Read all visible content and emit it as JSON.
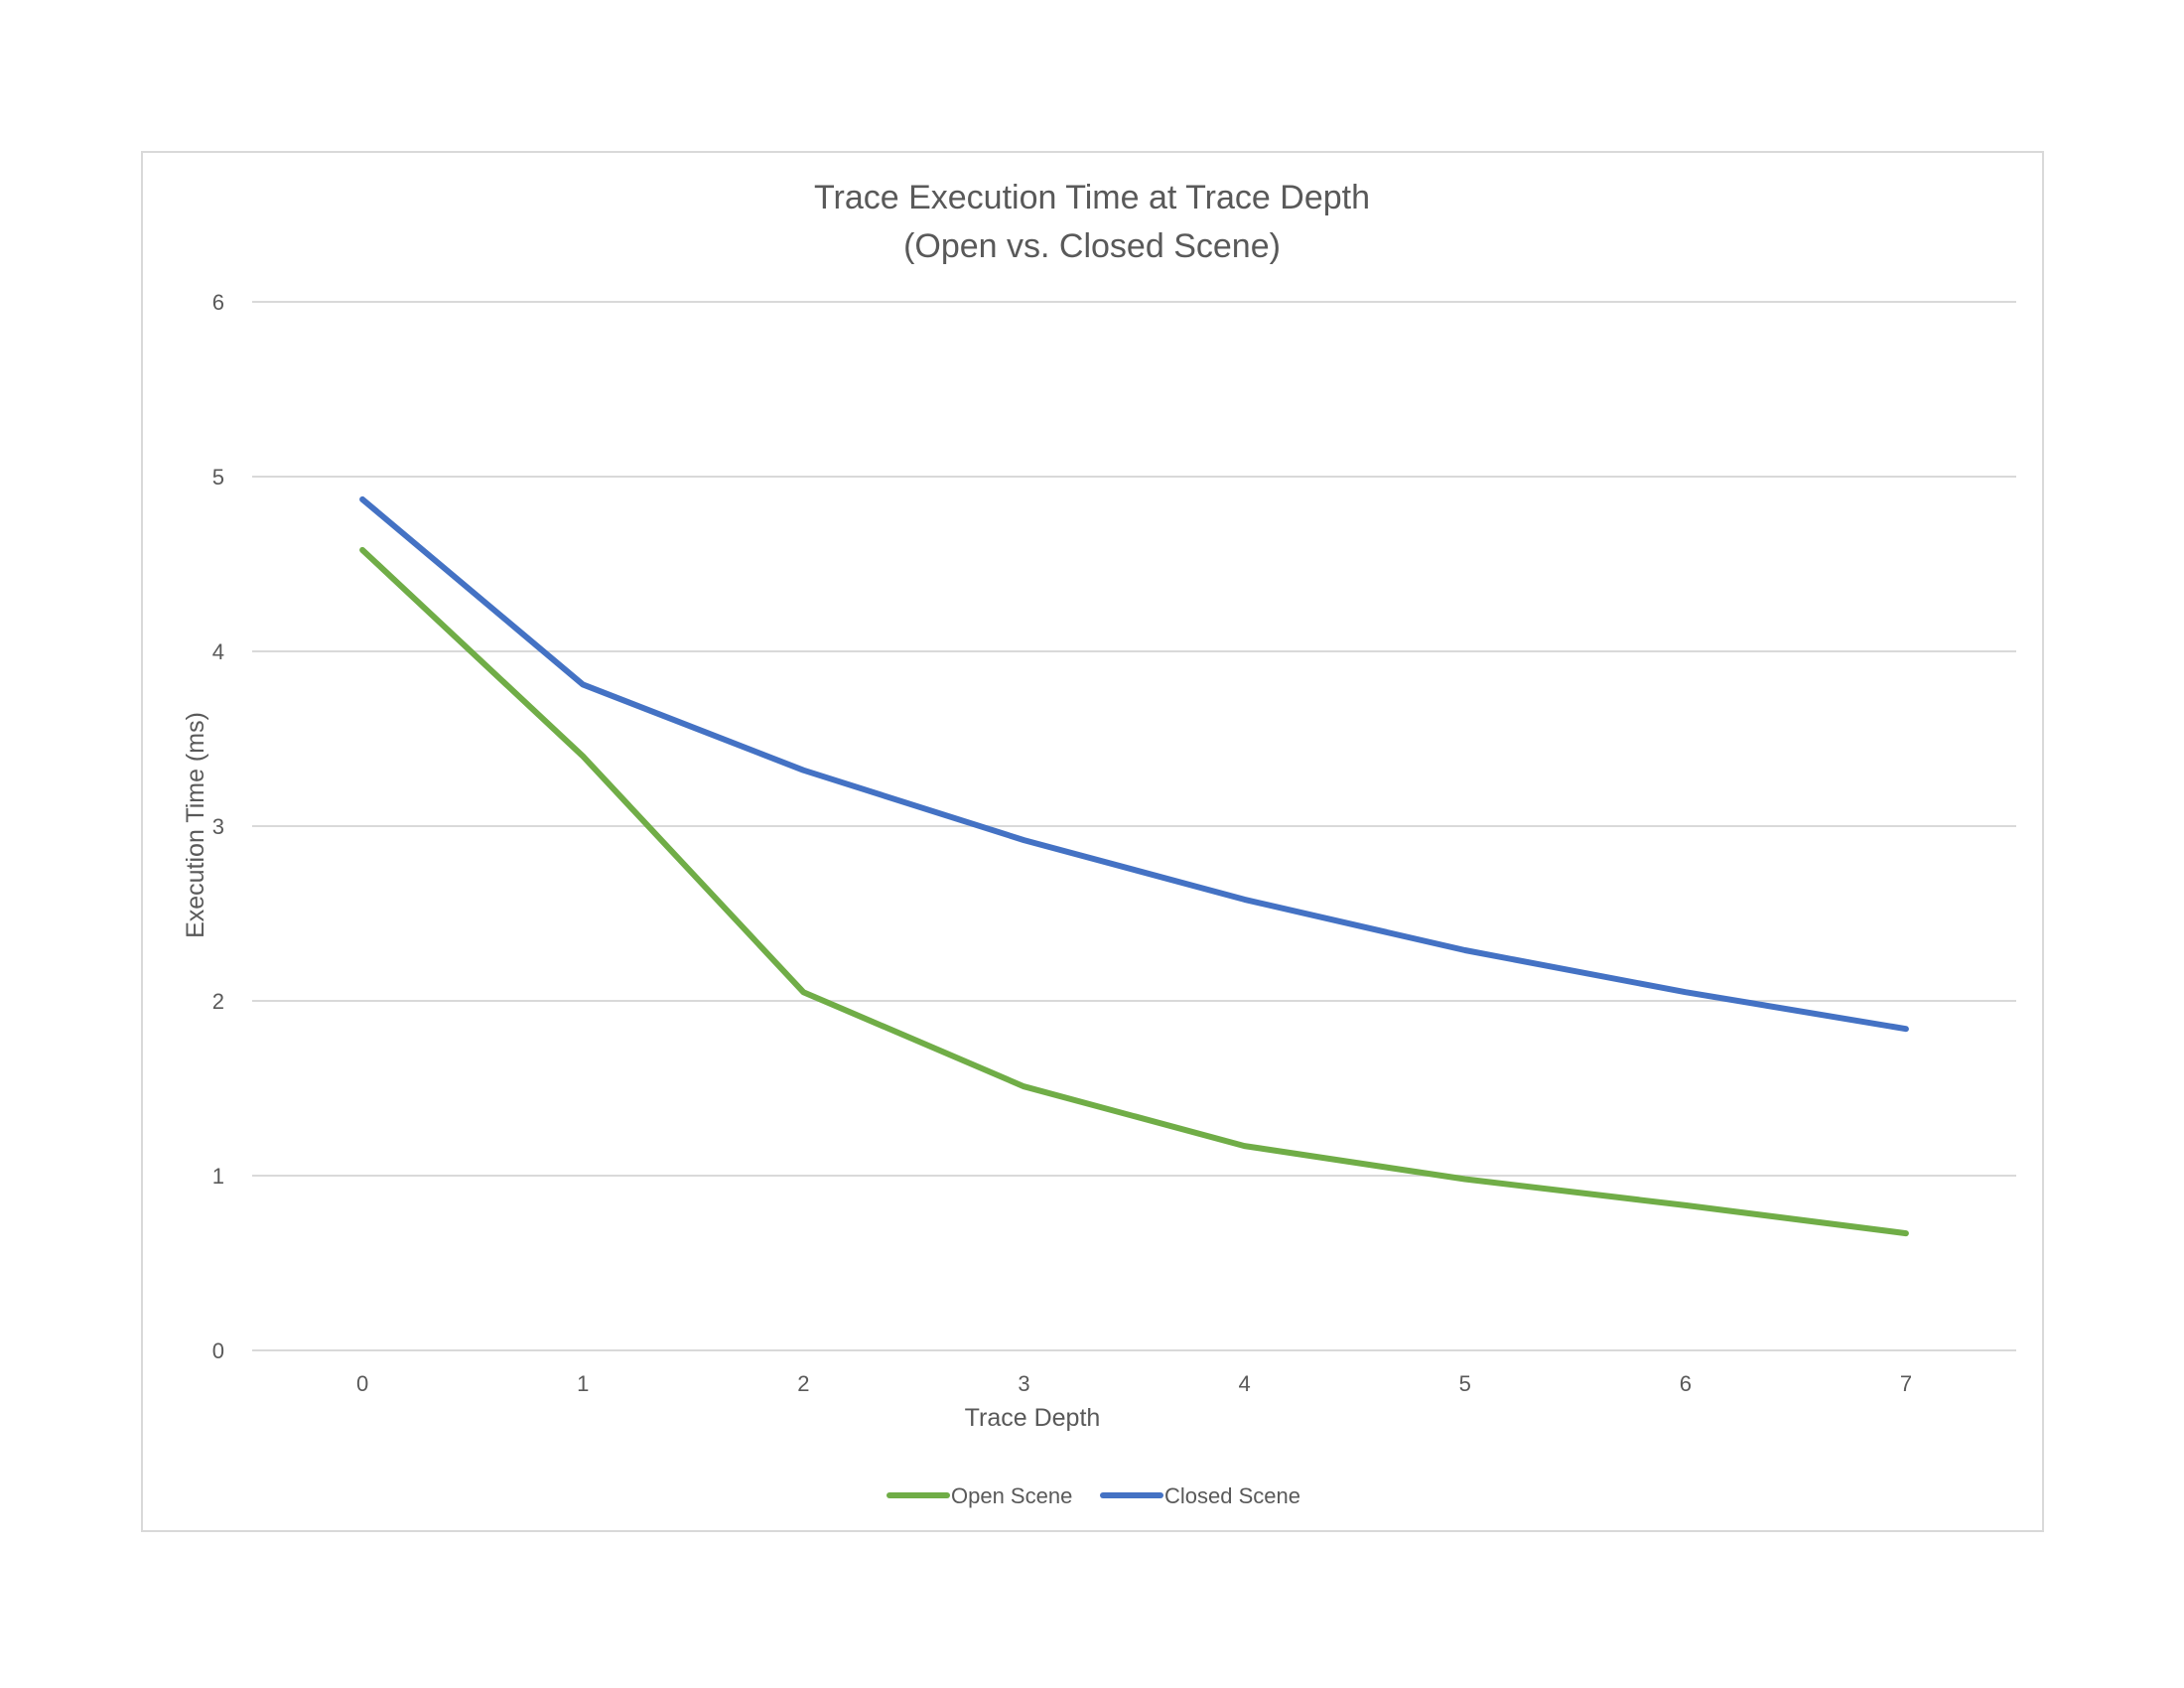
{
  "chart_data": {
    "type": "line",
    "title": "Trace Execution Time at Trace Depth",
    "subtitle": "(Open vs. Closed Scene)",
    "xlabel": "Trace Depth",
    "ylabel": "Execution Time (ms)",
    "categories": [
      "0",
      "1",
      "2",
      "3",
      "4",
      "5",
      "6",
      "7"
    ],
    "x": [
      0,
      1,
      2,
      3,
      4,
      5,
      6,
      7
    ],
    "ylim": [
      0,
      6
    ],
    "yticks": [
      "0",
      "1",
      "2",
      "3",
      "4",
      "5",
      "6"
    ],
    "grid": true,
    "legend_position": "bottom",
    "series": [
      {
        "name": "Open Scene",
        "color": "#70ad47",
        "values": [
          4.58,
          3.4,
          2.05,
          1.51,
          1.17,
          0.98,
          0.83,
          0.67
        ]
      },
      {
        "name": "Closed Scene",
        "color": "#4472c4",
        "values": [
          4.87,
          3.81,
          3.32,
          2.92,
          2.58,
          2.29,
          2.05,
          1.84
        ]
      }
    ]
  }
}
